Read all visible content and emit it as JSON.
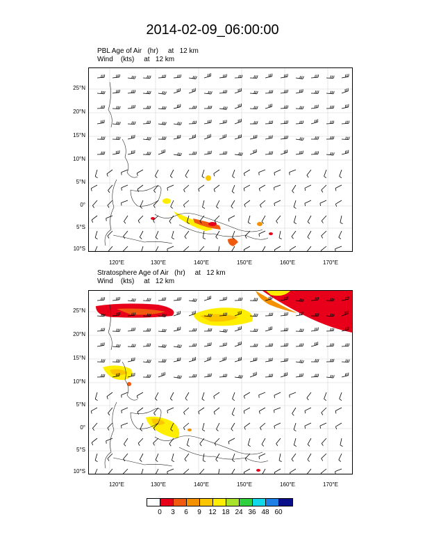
{
  "title": "2014-02-09_06:00:00",
  "panels": [
    {
      "line1": "PBL Age of Air   (hr)     at   12 km",
      "line2": "Wind    (kts)     at   12 km"
    },
    {
      "line1": "Stratosphere Age of Air   (hr)     at   12 km",
      "line2": "Wind    (kts)     at   12 km"
    }
  ],
  "lat_labels": [
    "25°N",
    "20°N",
    "15°N",
    "10°N",
    "5°N",
    "0°",
    "5°S",
    "10°S"
  ],
  "lon_labels": [
    "120°E",
    "130°E",
    "140°E",
    "150°E",
    "160°E",
    "170°E"
  ],
  "legend": {
    "colors": [
      "#ffffff",
      "#e8001a",
      "#f05a0f",
      "#f59000",
      "#fbc600",
      "#ffee00",
      "#a8e22a",
      "#2fcf3d",
      "#10d8e8",
      "#1e7fe6",
      "#0c0f8a"
    ],
    "ticks": [
      "0",
      "3",
      "6",
      "9",
      "12",
      "18",
      "24",
      "36",
      "48",
      "60"
    ]
  }
}
